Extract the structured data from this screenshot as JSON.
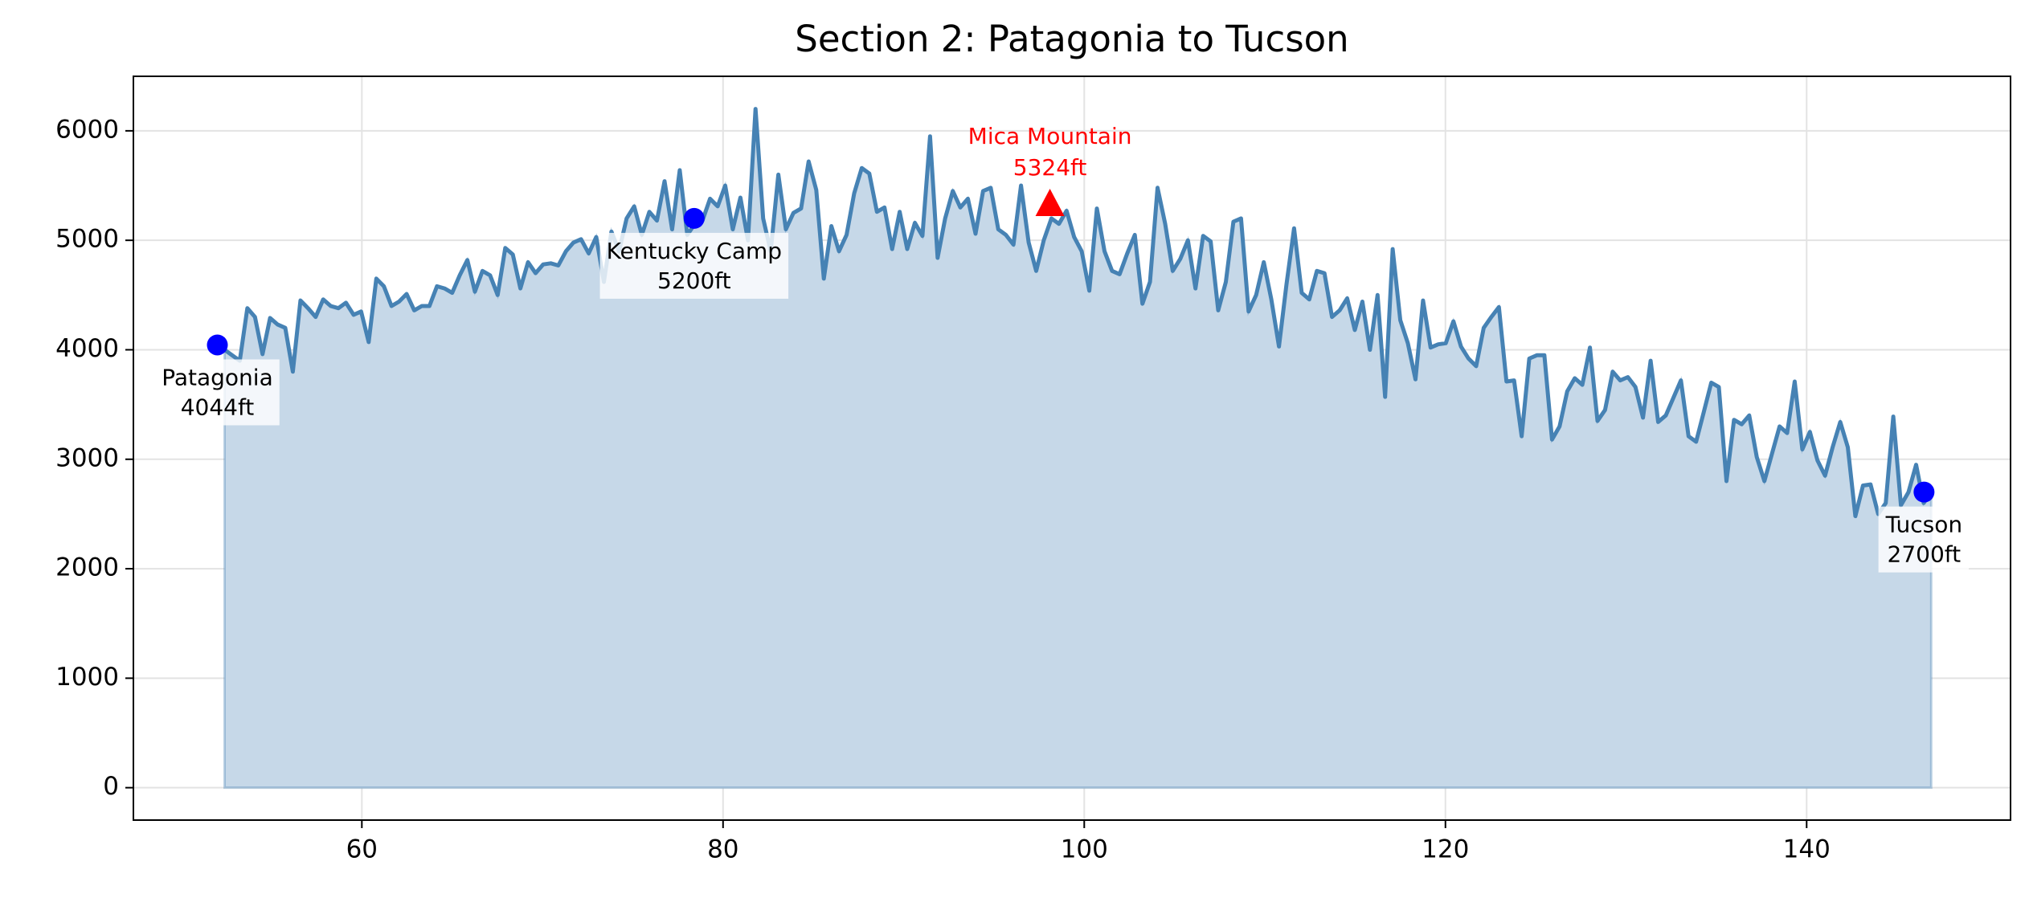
{
  "chart_data": {
    "type": "area",
    "title": "Section 2: Patagonia to Tucson",
    "color": "#4682b4",
    "fill_color": "#c6d8e8",
    "grid": true,
    "xlim": [
      47.35,
      151.29
    ],
    "ylim": [
      -296,
      6498
    ],
    "xticks": [
      60,
      80,
      100,
      120,
      140
    ],
    "yticks": [
      0,
      1000,
      2000,
      3000,
      4000,
      5000,
      6000
    ],
    "x": [
      52.4,
      52.82,
      53.24,
      53.66,
      54.08,
      54.5,
      54.92,
      55.34,
      55.76,
      56.18,
      56.6,
      57.02,
      57.44,
      57.86,
      58.28,
      58.7,
      59.12,
      59.54,
      59.96,
      60.38,
      60.8,
      61.22,
      61.64,
      62.06,
      62.48,
      62.9,
      63.32,
      63.74,
      64.16,
      64.58,
      65.0,
      65.42,
      65.84,
      66.26,
      66.68,
      67.1,
      67.52,
      67.94,
      68.36,
      68.78,
      69.2,
      69.62,
      70.04,
      70.46,
      70.88,
      71.3,
      71.72,
      72.14,
      72.56,
      72.98,
      73.4,
      73.82,
      74.24,
      74.66,
      75.08,
      75.5,
      75.92,
      76.34,
      76.76,
      77.18,
      77.6,
      78.02,
      78.44,
      78.86,
      79.28,
      79.7,
      80.12,
      80.54,
      80.96,
      81.38,
      81.8,
      82.22,
      82.64,
      83.06,
      83.48,
      83.9,
      84.32,
      84.74,
      85.16,
      85.58,
      86.0,
      86.42,
      86.84,
      87.26,
      87.68,
      88.1,
      88.52,
      88.94,
      89.36,
      89.78,
      90.2,
      90.62,
      91.04,
      91.46,
      91.88,
      92.3,
      92.72,
      93.14,
      93.56,
      93.98,
      94.4,
      94.82,
      95.24,
      95.66,
      96.08,
      96.5,
      96.92,
      97.34,
      97.76,
      98.18,
      98.6,
      99.02,
      99.44,
      99.86,
      100.28,
      100.7,
      101.12,
      101.54,
      101.96,
      102.38,
      102.8,
      103.22,
      103.64,
      104.06,
      104.48,
      104.9,
      105.32,
      105.74,
      106.16,
      106.58,
      107.0,
      107.42,
      107.84,
      108.26,
      108.68,
      109.1,
      109.52,
      109.94,
      110.36,
      110.78,
      111.2,
      111.62,
      112.04,
      112.46,
      112.88,
      113.3,
      113.72,
      114.14,
      114.56,
      114.98,
      115.4,
      115.82,
      116.24,
      116.66,
      117.08,
      117.5,
      117.92,
      118.34,
      118.76,
      119.18,
      119.6,
      120.02,
      120.44,
      120.86,
      121.28,
      121.7,
      122.12,
      122.54,
      122.96,
      123.38,
      123.8,
      124.22,
      124.64,
      125.06,
      125.48,
      125.9,
      126.32,
      126.74,
      127.16,
      127.58,
      128.0,
      128.42,
      128.84,
      129.26,
      129.68,
      130.1,
      130.52,
      130.94,
      131.36,
      131.78,
      132.2,
      132.62,
      133.04,
      133.46,
      133.88,
      134.3,
      134.72,
      135.14,
      135.56,
      135.98,
      136.4,
      136.82,
      137.24,
      137.66,
      138.08,
      138.5,
      138.92,
      139.34,
      139.76,
      140.18,
      140.6,
      141.02,
      141.44,
      141.86,
      142.28,
      142.7,
      143.12,
      143.54,
      143.96,
      144.38,
      144.8,
      145.22,
      145.64,
      146.06,
      146.48,
      146.9
    ],
    "values": [
      4000,
      3950,
      3900,
      4380,
      4300,
      3960,
      4290,
      4230,
      4200,
      3800,
      4450,
      4380,
      4300,
      4460,
      4400,
      4380,
      4430,
      4320,
      4350,
      4070,
      4650,
      4580,
      4400,
      4440,
      4510,
      4360,
      4400,
      4400,
      4580,
      4560,
      4520,
      4680,
      4820,
      4530,
      4720,
      4680,
      4500,
      4930,
      4870,
      4560,
      4800,
      4700,
      4780,
      4790,
      4770,
      4900,
      4980,
      5010,
      4880,
      5030,
      4620,
      5080,
      4900,
      5200,
      5310,
      5050,
      5260,
      5180,
      5540,
      5100,
      5640,
      5050,
      5150,
      5180,
      5380,
      5310,
      5500,
      5100,
      5390,
      5000,
      6200,
      5200,
      4900,
      5600,
      5100,
      5250,
      5290,
      5720,
      5460,
      4650,
      5130,
      4900,
      5050,
      5430,
      5660,
      5610,
      5260,
      5300,
      4920,
      5260,
      4920,
      5160,
      5040,
      5950,
      4840,
      5200,
      5450,
      5300,
      5380,
      5060,
      5450,
      5480,
      5100,
      5050,
      4960,
      5500,
      4980,
      4720,
      5000,
      5200,
      5150,
      5270,
      5030,
      4900,
      4540,
      5290,
      4900,
      4720,
      4690,
      4880,
      5050,
      4420,
      4620,
      5480,
      5150,
      4720,
      4830,
      5000,
      4560,
      5040,
      4990,
      4360,
      4620,
      5170,
      5200,
      4350,
      4500,
      4800,
      4460,
      4030,
      4600,
      5110,
      4520,
      4460,
      4720,
      4700,
      4300,
      4360,
      4470,
      4180,
      4440,
      4000,
      4500,
      3570,
      4920,
      4270,
      4060,
      3730,
      4450,
      4020,
      4050,
      4060,
      4260,
      4030,
      3920,
      3850,
      4200,
      4300,
      4390,
      3710,
      3720,
      3210,
      3920,
      3950,
      3950,
      3180,
      3300,
      3620,
      3740,
      3680,
      4020,
      3350,
      3450,
      3800,
      3720,
      3750,
      3660,
      3380,
      3900,
      3340,
      3400,
      3560,
      3720,
      3210,
      3160,
      3430,
      3700,
      3660,
      2800,
      3360,
      3320,
      3400,
      3020,
      2800,
      3050,
      3300,
      3240,
      3710,
      3090,
      3250,
      2990,
      2850,
      3110,
      3340,
      3110,
      2480,
      2760,
      2770,
      2500,
      2600,
      3390,
      2580,
      2700,
      2950,
      2600,
      2700
    ],
    "waypoints": [
      {
        "label": "Patagonia",
        "value_label": "4044ft",
        "x": 52.0,
        "y": 4044,
        "color": "#0000ff",
        "marker": "circle",
        "label_side": "below"
      },
      {
        "label": "Kentucky Camp",
        "value_label": "5200ft",
        "x": 78.4,
        "y": 5200,
        "color": "#0000ff",
        "marker": "circle",
        "label_side": "below"
      },
      {
        "label": "Tucson",
        "value_label": "2700ft",
        "x": 146.5,
        "y": 2700,
        "color": "#0000ff",
        "marker": "circle",
        "label_side": "below"
      },
      {
        "label": "Mica Mountain",
        "value_label": "5324ft",
        "x": 98.1,
        "y": 5324,
        "color": "#ff0000",
        "marker": "triangle",
        "label_side": "above"
      }
    ]
  }
}
